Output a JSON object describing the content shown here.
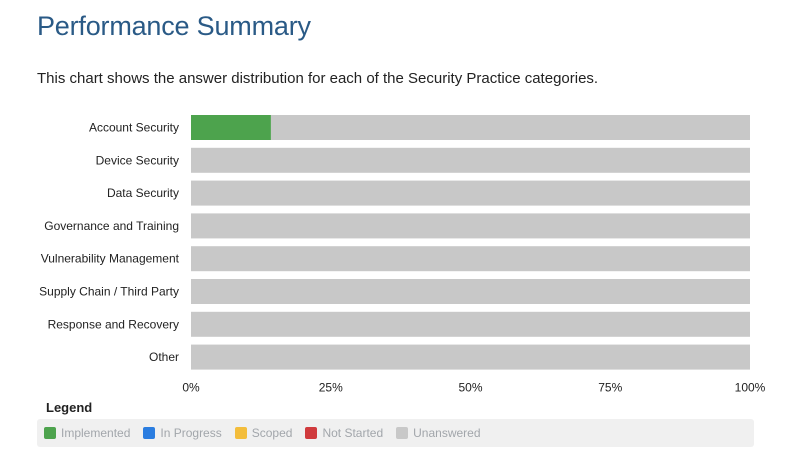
{
  "header": {
    "title": "Performance Summary",
    "description": "This chart shows the answer distribution for each of the Security Practice categories."
  },
  "colors": {
    "implemented": "#4da34d",
    "in_progress": "#2b7de0",
    "scoped": "#f3bd3b",
    "not_started": "#d03a3d",
    "unanswered": "#c8c8c8"
  },
  "chart_data": {
    "type": "bar",
    "orientation": "horizontal",
    "stacked": true,
    "percent": true,
    "categories": [
      "Account Security",
      "Device Security",
      "Data Security",
      "Governance and Training",
      "Vulnerability Management",
      "Supply Chain / Third Party",
      "Response and Recovery",
      "Other"
    ],
    "series": [
      {
        "name": "Implemented",
        "values": [
          14.3,
          0,
          0,
          0,
          0,
          0,
          0,
          0
        ]
      },
      {
        "name": "In Progress",
        "values": [
          0,
          0,
          0,
          0,
          0,
          0,
          0,
          0
        ]
      },
      {
        "name": "Scoped",
        "values": [
          0,
          0,
          0,
          0,
          0,
          0,
          0,
          0
        ]
      },
      {
        "name": "Not Started",
        "values": [
          0,
          0,
          0,
          0,
          0,
          0,
          0,
          0
        ]
      },
      {
        "name": "Unanswered",
        "values": [
          85.7,
          100,
          100,
          100,
          100,
          100,
          100,
          100
        ]
      }
    ],
    "xlim": [
      0,
      100
    ],
    "x_ticks": [
      "0%",
      "25%",
      "50%",
      "75%",
      "100%"
    ],
    "x_tick_values": [
      0,
      25,
      50,
      75,
      100
    ],
    "legend_position": "bottom"
  },
  "legend": {
    "title": "Legend",
    "items": [
      {
        "label": "Implemented",
        "color": "#4da34d"
      },
      {
        "label": "In Progress",
        "color": "#2b7de0"
      },
      {
        "label": "Scoped",
        "color": "#f3bd3b"
      },
      {
        "label": "Not Started",
        "color": "#d03a3d"
      },
      {
        "label": "Unanswered",
        "color": "#c8c8c8"
      }
    ]
  }
}
